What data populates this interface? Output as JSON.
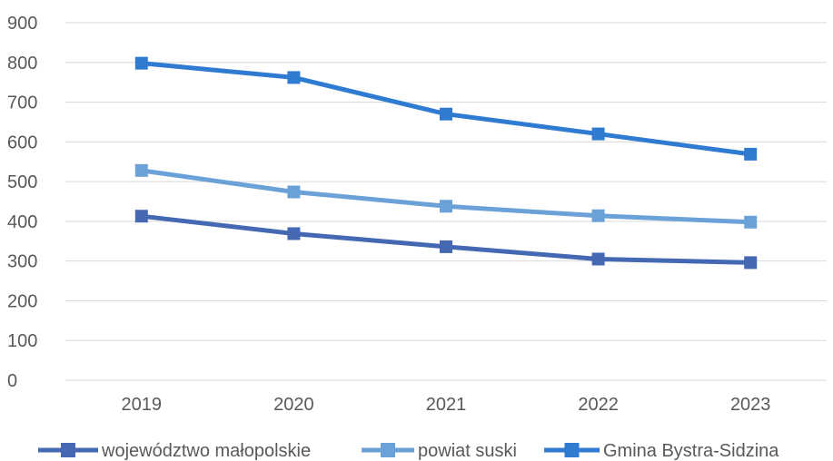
{
  "chart_data": {
    "type": "line",
    "categories": [
      "2019",
      "2020",
      "2021",
      "2022",
      "2023"
    ],
    "series": [
      {
        "name": "województwo małopolskie",
        "color": "#4568B2",
        "values": [
          413,
          369,
          336,
          305,
          296
        ]
      },
      {
        "name": "powiat suski",
        "color": "#6AA2D7",
        "values": [
          528,
          474,
          438,
          414,
          398
        ]
      },
      {
        "name": "Gmina Bystra-Sidzina",
        "color": "#2E7BD1",
        "values": [
          798,
          762,
          670,
          620,
          569
        ]
      }
    ],
    "ylim": [
      0,
      900
    ],
    "yticks": [
      0,
      100,
      200,
      300,
      400,
      500,
      600,
      700,
      800,
      900
    ],
    "grid": true,
    "legend_position": "bottom",
    "marker": "square",
    "gridline_color": "#D9D9D9"
  }
}
